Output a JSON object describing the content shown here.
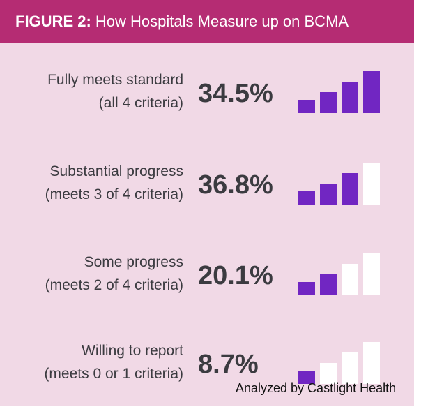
{
  "header": {
    "figure_label": "FIGURE 2:",
    "title": "How Hospitals Measure up on BCMA"
  },
  "rows": [
    {
      "label_line1": "Fully meets standard",
      "label_line2": "(all 4 criteria)",
      "percent": "34.5%",
      "bars_filled": 4
    },
    {
      "label_line1": "Substantial progress",
      "label_line2": "(meets 3 of 4 criteria)",
      "percent": "36.8%",
      "bars_filled": 3
    },
    {
      "label_line1": "Some progress",
      "label_line2": "(meets 2 of 4 criteria)",
      "percent": "20.1%",
      "bars_filled": 2
    },
    {
      "label_line1": "Willing to report",
      "label_line2": "(meets 0 or 1 criteria)",
      "percent": "8.7%",
      "bars_filled": 1
    }
  ],
  "credit": "Analyzed by Castlight Health",
  "colors": {
    "header": "#b52c73",
    "background": "#f1d9e6",
    "bar_filled": "#7126c2",
    "bar_empty": "#ffffff",
    "text": "#3b3b40"
  },
  "chart_data": {
    "type": "bar",
    "title": "How Hospitals Measure up on BCMA",
    "categories": [
      "Fully meets standard (all 4 criteria)",
      "Substantial progress (meets 3 of 4 criteria)",
      "Some progress (meets 2 of 4 criteria)",
      "Willing to report (meets 0 or 1 criteria)"
    ],
    "values": [
      34.5,
      36.8,
      20.1,
      8.7
    ],
    "criteria_met_icon": [
      4,
      3,
      2,
      1
    ]
  }
}
